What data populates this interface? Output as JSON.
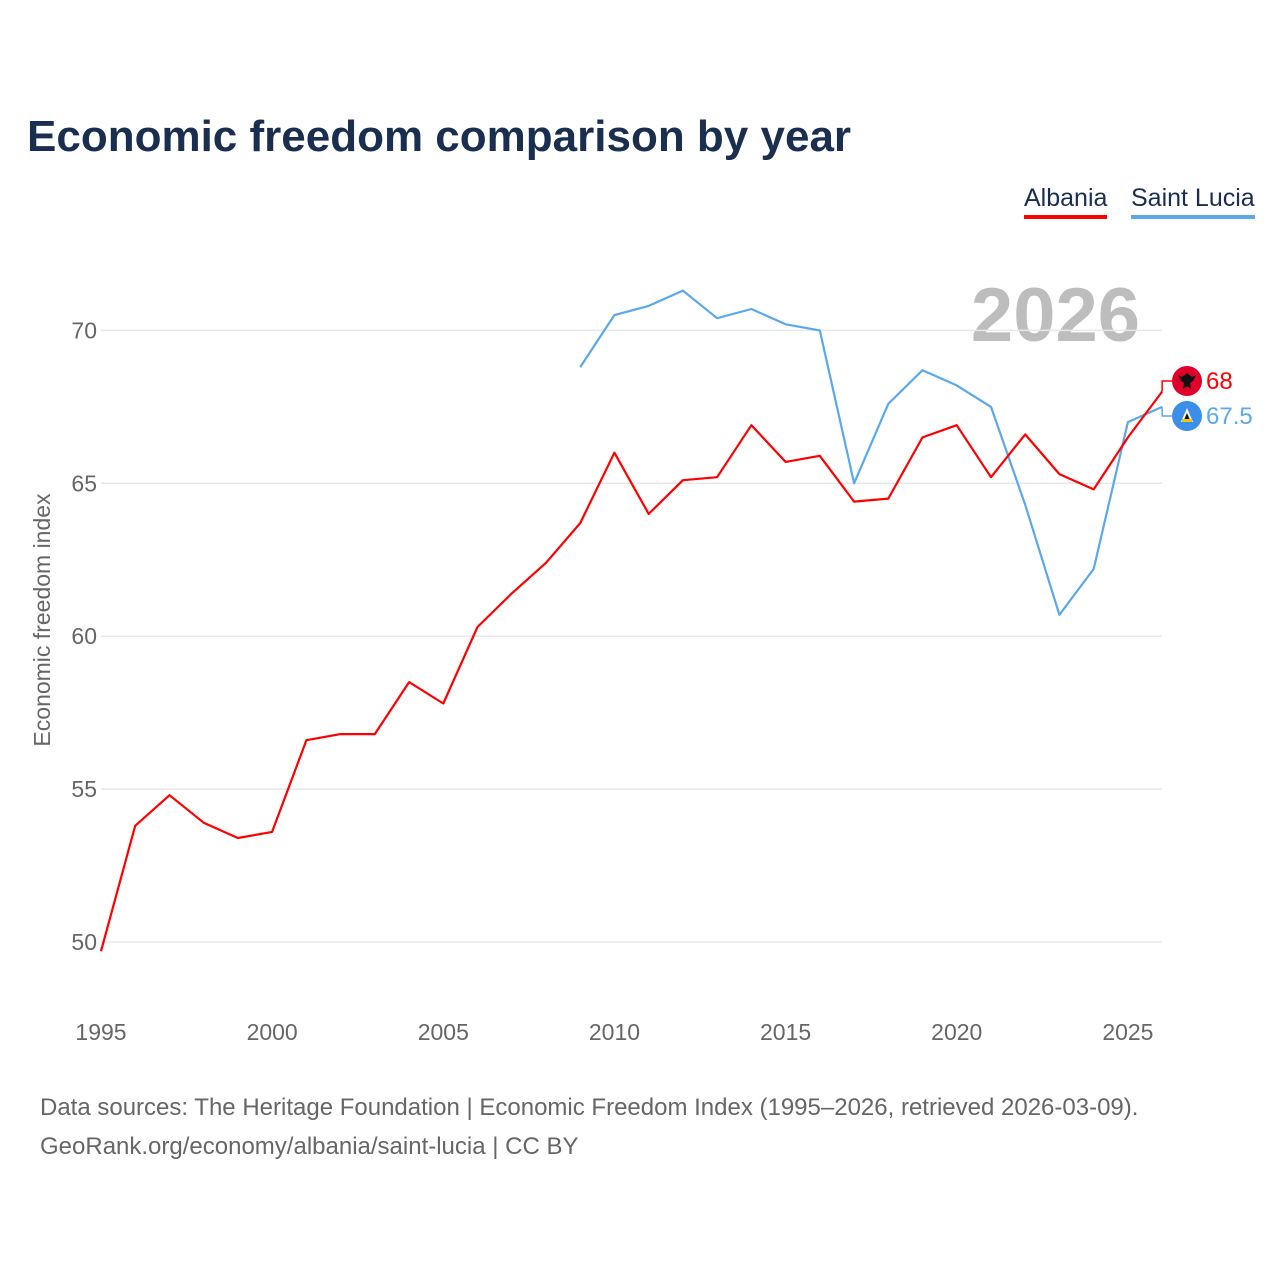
{
  "chart_data": {
    "type": "line",
    "title": "Economic freedom comparison by year",
    "ylabel": "Economic freedom index",
    "xlabel": "",
    "xlim": [
      1995,
      2026
    ],
    "ylim": [
      50,
      72
    ],
    "x_ticks": [
      "1995",
      "2000",
      "2005",
      "2010",
      "2015",
      "2020",
      "2025"
    ],
    "y_ticks": [
      "50",
      "55",
      "60",
      "65",
      "70"
    ],
    "grid": true,
    "legend_position": "top-right",
    "year_watermark": "2026",
    "series": [
      {
        "name": "Albania",
        "color": "#ff0000",
        "end_label": "68",
        "x": [
          1995,
          1996,
          1997,
          1998,
          1999,
          2000,
          2001,
          2002,
          2003,
          2004,
          2005,
          2006,
          2007,
          2008,
          2009,
          2010,
          2011,
          2012,
          2013,
          2014,
          2015,
          2016,
          2017,
          2018,
          2019,
          2020,
          2021,
          2022,
          2023,
          2024,
          2025,
          2026
        ],
        "values": [
          49.7,
          53.8,
          54.8,
          53.9,
          53.4,
          53.6,
          56.6,
          56.8,
          56.8,
          58.5,
          57.8,
          60.3,
          61.4,
          62.4,
          63.7,
          66.0,
          64.0,
          65.1,
          65.2,
          66.9,
          65.7,
          65.9,
          64.4,
          64.5,
          66.5,
          66.9,
          65.2,
          66.6,
          65.3,
          64.8,
          66.5,
          68.0
        ]
      },
      {
        "name": "Saint Lucia",
        "color": "#5ba8ec",
        "end_label": "67.5",
        "x": [
          2009,
          2010,
          2011,
          2012,
          2013,
          2014,
          2015,
          2016,
          2017,
          2018,
          2019,
          2020,
          2021,
          2022,
          2023,
          2024,
          2025,
          2026
        ],
        "values": [
          68.8,
          70.5,
          70.8,
          71.3,
          70.4,
          70.7,
          70.2,
          70.0,
          65.0,
          67.6,
          68.7,
          68.2,
          67.5,
          64.3,
          60.7,
          62.2,
          67.0,
          67.5
        ]
      }
    ]
  },
  "source": {
    "line1": "Data sources: The Heritage Foundation | Economic Freedom Index (1995–2026, retrieved 2026-03-09).",
    "line2": "GeoRank.org/economy/albania/saint-lucia | CC BY"
  }
}
